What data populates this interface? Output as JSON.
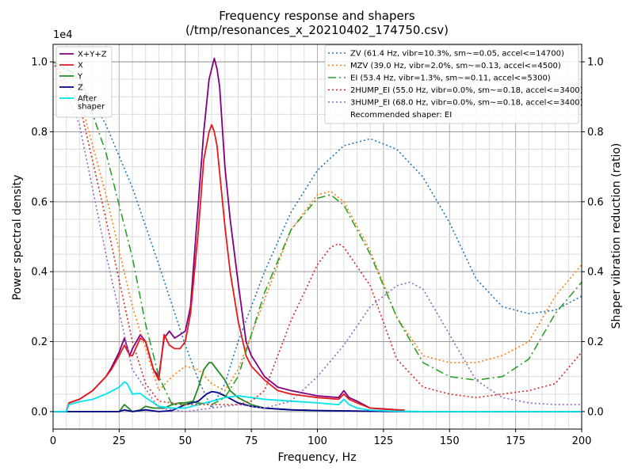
{
  "chart_data": {
    "type": "line",
    "title": "Frequency response and shapers",
    "subtitle": "(/tmp/resonances_x_20210402_174750.csv)",
    "xlabel": "Frequency, Hz",
    "ylabel": "Power spectral density",
    "y2label": "Shaper vibration reduction (ratio)",
    "y_multiplier_label": "1e4",
    "xlim": [
      0,
      200
    ],
    "ylim": [
      -0.05,
      1.05
    ],
    "y2lim": [
      -0.05,
      1.05
    ],
    "grid": true,
    "x_ticks": [
      0,
      25,
      50,
      75,
      100,
      125,
      150,
      175,
      200
    ],
    "y_ticks": [
      0.0,
      0.2,
      0.4,
      0.6,
      0.8,
      1.0
    ],
    "y2_ticks": [
      0.0,
      0.2,
      0.4,
      0.6,
      0.8,
      1.0
    ],
    "x_tick_labels": [
      "0",
      "25",
      "50",
      "75",
      "100",
      "125",
      "150",
      "175",
      "200"
    ],
    "y_tick_labels": [
      "0.0",
      "0.2",
      "0.4",
      "0.6",
      "0.8",
      "1.0"
    ],
    "y2_tick_labels": [
      "0.0",
      "0.2",
      "0.4",
      "0.6",
      "0.8",
      "1.0"
    ],
    "legend_left_placement": "upper-left",
    "legend_right_placement": "upper-right",
    "psd_series": [
      {
        "name": "X+Y+Z",
        "color": "#800080",
        "style": "solid",
        "x": [
          0,
          5,
          6,
          10,
          15,
          20,
          22,
          25,
          27,
          29,
          30,
          33,
          35,
          38,
          40,
          42,
          44,
          46,
          48,
          50,
          52,
          55,
          57,
          59,
          61,
          62,
          63,
          65,
          67,
          70,
          73,
          75,
          80,
          85,
          90,
          100,
          108,
          110,
          112,
          115,
          120,
          125,
          130,
          133
        ],
        "y": [
          0.0,
          0.0,
          0.025,
          0.035,
          0.06,
          0.1,
          0.125,
          0.17,
          0.21,
          0.16,
          0.18,
          0.22,
          0.2,
          0.12,
          0.1,
          0.21,
          0.23,
          0.21,
          0.22,
          0.23,
          0.3,
          0.6,
          0.8,
          0.95,
          1.01,
          0.98,
          0.93,
          0.7,
          0.55,
          0.37,
          0.2,
          0.16,
          0.1,
          0.07,
          0.06,
          0.045,
          0.04,
          0.06,
          0.04,
          0.03,
          0.01,
          0.008,
          0.005,
          0.004
        ]
      },
      {
        "name": "X",
        "color": "#e41a1c",
        "style": "solid",
        "x": [
          0,
          5,
          6,
          10,
          15,
          20,
          22,
          25,
          27,
          29,
          30,
          33,
          35,
          38,
          40,
          42,
          44,
          46,
          48,
          50,
          52,
          55,
          57,
          59,
          60,
          61,
          62,
          65,
          67,
          70,
          73,
          75,
          80,
          85,
          90,
          100,
          108,
          110,
          112,
          115,
          120,
          125,
          130,
          133
        ],
        "y": [
          0.0,
          0.0,
          0.025,
          0.035,
          0.06,
          0.1,
          0.12,
          0.16,
          0.19,
          0.16,
          0.16,
          0.21,
          0.2,
          0.12,
          0.09,
          0.22,
          0.19,
          0.18,
          0.18,
          0.2,
          0.28,
          0.52,
          0.72,
          0.8,
          0.82,
          0.8,
          0.76,
          0.53,
          0.4,
          0.26,
          0.16,
          0.13,
          0.09,
          0.06,
          0.05,
          0.04,
          0.035,
          0.05,
          0.035,
          0.025,
          0.01,
          0.007,
          0.005,
          0.004
        ]
      },
      {
        "name": "Y",
        "color": "#228b22",
        "style": "solid",
        "x": [
          0,
          10,
          20,
          25,
          27,
          30,
          33,
          35,
          38,
          40,
          42,
          45,
          48,
          50,
          53,
          55,
          57,
          59,
          60,
          62,
          65,
          67,
          70,
          75,
          80,
          90,
          100,
          110,
          120,
          130,
          140,
          160,
          180,
          200
        ],
        "y": [
          0.0,
          0.0,
          0.0,
          0.0,
          0.02,
          0.0,
          0.005,
          0.015,
          0.01,
          0.01,
          0.01,
          0.02,
          0.025,
          0.025,
          0.03,
          0.07,
          0.12,
          0.14,
          0.14,
          0.12,
          0.09,
          0.06,
          0.04,
          0.02,
          0.01,
          0.005,
          0.003,
          0.002,
          0.001,
          0.001,
          0.0,
          0.0,
          0.0,
          0.0
        ]
      },
      {
        "name": "Z",
        "color": "#00008b",
        "style": "solid",
        "x": [
          0,
          10,
          20,
          25,
          27,
          30,
          35,
          40,
          45,
          50,
          55,
          58,
          60,
          62,
          65,
          70,
          75,
          80,
          90,
          100,
          110,
          120,
          130,
          140,
          160,
          180,
          200
        ],
        "y": [
          0.0,
          0.0,
          0.0,
          0.0,
          0.005,
          0.0,
          0.005,
          0.0,
          0.003,
          0.02,
          0.03,
          0.05,
          0.057,
          0.055,
          0.045,
          0.025,
          0.015,
          0.01,
          0.005,
          0.003,
          0.002,
          0.001,
          0.0,
          0.0,
          0.0,
          0.0,
          0.0
        ]
      },
      {
        "name": "After\nshaper",
        "color": "#00e5ee",
        "style": "solid",
        "x": [
          0,
          5,
          6,
          10,
          15,
          20,
          25,
          27,
          28,
          30,
          33,
          35,
          40,
          45,
          50,
          55,
          60,
          65,
          70,
          75,
          80,
          90,
          100,
          108,
          110,
          112,
          115,
          120,
          130,
          140,
          160,
          180,
          200
        ],
        "y": [
          0.0,
          0.0,
          0.02,
          0.028,
          0.035,
          0.05,
          0.07,
          0.085,
          0.08,
          0.05,
          0.052,
          0.04,
          0.015,
          0.01,
          0.01,
          0.02,
          0.03,
          0.04,
          0.045,
          0.04,
          0.035,
          0.03,
          0.025,
          0.02,
          0.035,
          0.02,
          0.01,
          0.004,
          0.001,
          0.0,
          0.0,
          0.0,
          0.0
        ]
      }
    ],
    "shaper_series": [
      {
        "name": "ZV (61.4 Hz, vibr=10.3%, sm~=0.05, accel<=14700)",
        "color": "#1f77b4",
        "style": "dotted",
        "x": [
          0,
          10,
          20,
          30,
          40,
          50,
          55,
          60,
          65,
          70,
          80,
          90,
          100,
          110,
          120,
          130,
          140,
          150,
          160,
          170,
          180,
          190,
          200
        ],
        "y": [
          1.0,
          0.95,
          0.82,
          0.64,
          0.42,
          0.19,
          0.09,
          0.01,
          0.08,
          0.2,
          0.4,
          0.57,
          0.69,
          0.76,
          0.78,
          0.75,
          0.67,
          0.54,
          0.38,
          0.3,
          0.28,
          0.29,
          0.33
        ]
      },
      {
        "name": "MZV (39.0 Hz, vibr=2.0%, sm~=0.13, accel<=4500)",
        "color": "#ff7f0e",
        "style": "dotted",
        "x": [
          0,
          10,
          20,
          30,
          40,
          45,
          50,
          55,
          60,
          65,
          70,
          80,
          90,
          100,
          105,
          110,
          120,
          130,
          140,
          150,
          160,
          170,
          180,
          190,
          200
        ],
        "y": [
          1.0,
          0.9,
          0.62,
          0.3,
          0.06,
          0.1,
          0.13,
          0.12,
          0.08,
          0.06,
          0.12,
          0.32,
          0.52,
          0.62,
          0.63,
          0.6,
          0.46,
          0.27,
          0.16,
          0.14,
          0.14,
          0.16,
          0.2,
          0.33,
          0.42
        ]
      },
      {
        "name": "EI (53.4 Hz, vibr=1.3%, sm~=0.11, accel<=5300)",
        "color": "#2ca02c",
        "style": "dashdot",
        "x": [
          0,
          10,
          20,
          30,
          35,
          40,
          45,
          50,
          55,
          60,
          65,
          70,
          80,
          90,
          100,
          105,
          110,
          120,
          130,
          140,
          150,
          160,
          170,
          180,
          190,
          200
        ],
        "y": [
          1.0,
          0.96,
          0.74,
          0.44,
          0.25,
          0.1,
          0.02,
          0.02,
          0.025,
          0.02,
          0.04,
          0.1,
          0.34,
          0.52,
          0.61,
          0.62,
          0.59,
          0.45,
          0.27,
          0.14,
          0.1,
          0.09,
          0.1,
          0.15,
          0.28,
          0.37
        ]
      },
      {
        "name": "2HUMP_EI (55.0 Hz, vibr=0.0%, sm~=0.18, accel<=3400)",
        "color": "#d62728",
        "style": "dotted",
        "x": [
          0,
          10,
          20,
          30,
          35,
          40,
          50,
          60,
          70,
          75,
          80,
          90,
          100,
          105,
          108,
          110,
          120,
          130,
          140,
          150,
          160,
          170,
          180,
          190,
          200
        ],
        "y": [
          1.0,
          0.88,
          0.55,
          0.2,
          0.08,
          0.03,
          0.02,
          0.02,
          0.02,
          0.03,
          0.06,
          0.26,
          0.42,
          0.47,
          0.48,
          0.47,
          0.36,
          0.15,
          0.07,
          0.05,
          0.04,
          0.05,
          0.06,
          0.08,
          0.17
        ]
      },
      {
        "name": "3HUMP_EI (68.0 Hz, vibr=0.0%, sm~=0.18, accel<=3400)",
        "color": "#9467bd",
        "style": "dotted",
        "x": [
          0,
          10,
          20,
          30,
          40,
          50,
          60,
          70,
          80,
          90,
          100,
          110,
          120,
          130,
          135,
          140,
          150,
          160,
          170,
          180,
          190,
          200
        ],
        "y": [
          1.0,
          0.82,
          0.45,
          0.12,
          0.01,
          0.0,
          0.01,
          0.02,
          0.01,
          0.03,
          0.1,
          0.19,
          0.3,
          0.36,
          0.37,
          0.35,
          0.22,
          0.09,
          0.04,
          0.025,
          0.02,
          0.02
        ]
      }
    ],
    "recommended_text": "Recommended shaper: EI"
  }
}
